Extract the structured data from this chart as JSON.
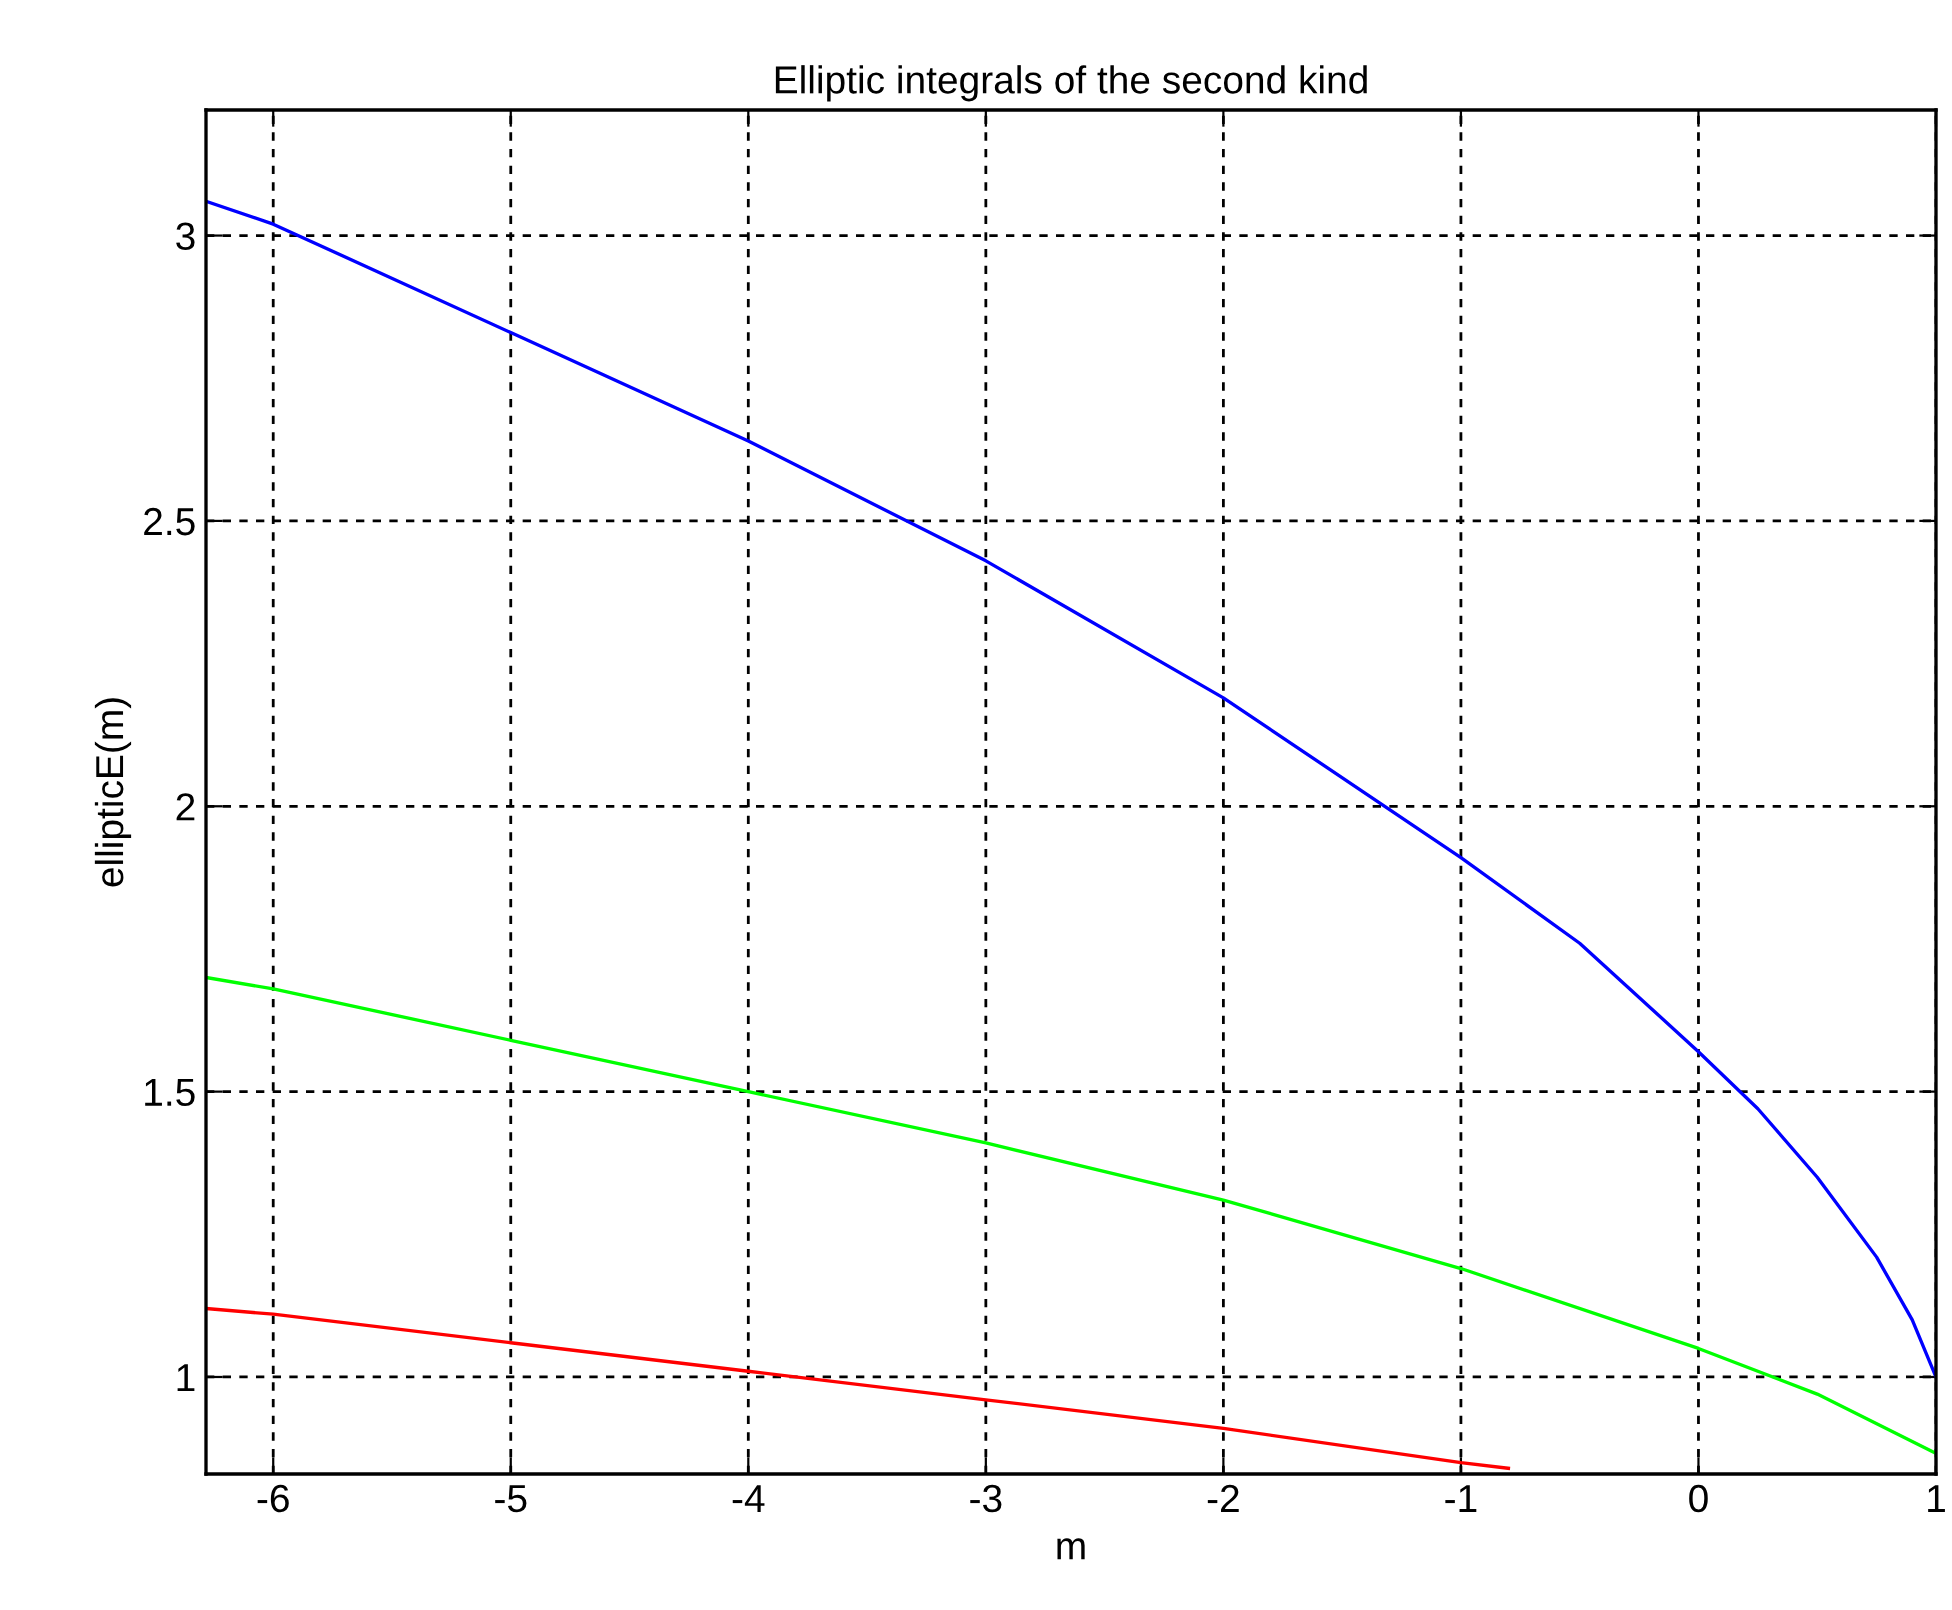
{
  "chart_data": {
    "type": "line",
    "title": "Elliptic integrals of the second kind",
    "xlabel": "m",
    "ylabel": "ellipticE(m)",
    "series": [
      {
        "color": "#0000ff",
        "x": [
          -6.283,
          -6,
          -5,
          -4,
          -3,
          -2,
          -1,
          -0.5,
          0,
          0.25,
          0.5,
          0.75,
          0.9,
          1
        ],
        "values": [
          3.06,
          3.02,
          2.83,
          2.64,
          2.43,
          2.19,
          1.91,
          1.76,
          1.57,
          1.47,
          1.35,
          1.21,
          1.1,
          1.0
        ]
      },
      {
        "color": "#00ff00",
        "x": [
          -6.283,
          -6,
          -5,
          -4,
          -3,
          -2,
          -1,
          0,
          0.5,
          1
        ],
        "values": [
          1.7,
          1.68,
          1.59,
          1.5,
          1.41,
          1.31,
          1.19,
          1.05,
          0.97,
          0.866
        ]
      },
      {
        "color": "#ff0000",
        "x": [
          -6.283,
          -6,
          -5,
          -4,
          -3,
          -2,
          -1,
          -0.8
        ],
        "values": [
          1.12,
          1.11,
          1.06,
          1.01,
          0.96,
          0.91,
          0.85,
          0.84
        ]
      }
    ],
    "xlim": [
      -6.283,
      1
    ],
    "ylim": [
      0.83,
      3.22
    ],
    "xticks": [
      -6,
      -5,
      -4,
      -3,
      -2,
      -1,
      0,
      1
    ],
    "yticks": [
      1,
      1.5,
      2,
      2.5,
      3
    ],
    "grid": true,
    "line_style": "solid",
    "marker": "none"
  }
}
